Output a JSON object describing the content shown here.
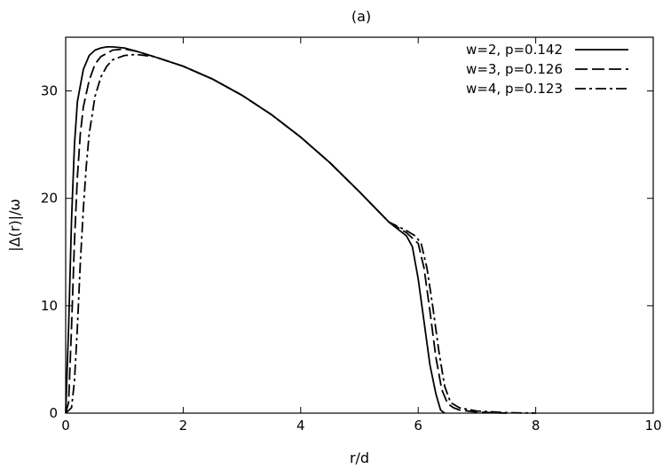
{
  "chart_data": {
    "type": "line",
    "title": "(a)",
    "xlabel": "r/d",
    "ylabel": "|Δ(r)|/ω",
    "xlim": [
      0,
      10
    ],
    "ylim": [
      0,
      35
    ],
    "xticks": [
      0,
      2,
      4,
      6,
      8,
      10
    ],
    "yticks": [
      0,
      10,
      20,
      30
    ],
    "grid": false,
    "legend_position": "top-right",
    "series": [
      {
        "name": "w=2, p=0.142",
        "style": "solid",
        "x": [
          0,
          0.05,
          0.1,
          0.15,
          0.2,
          0.3,
          0.4,
          0.5,
          0.6,
          0.7,
          0.8,
          1.0,
          1.2,
          1.5,
          2.0,
          2.5,
          3.0,
          3.5,
          4.0,
          4.5,
          5.0,
          5.5,
          5.8,
          5.9,
          6.0,
          6.1,
          6.2,
          6.3,
          6.38,
          6.45
        ],
        "y": [
          0,
          8,
          18,
          25,
          29,
          32,
          33.3,
          33.8,
          34.0,
          34.1,
          34.1,
          34.0,
          33.7,
          33.2,
          32.3,
          31.1,
          29.6,
          27.8,
          25.7,
          23.3,
          20.6,
          17.8,
          16.5,
          15.5,
          12.5,
          8.5,
          4.5,
          1.8,
          0.3,
          0
        ]
      },
      {
        "name": "w=3, p=0.126",
        "style": "dashed",
        "x": [
          0,
          0.05,
          0.1,
          0.15,
          0.2,
          0.25,
          0.3,
          0.4,
          0.5,
          0.6,
          0.8,
          1.0,
          1.2,
          1.5,
          2.0,
          2.5,
          3.0,
          3.5,
          4.0,
          4.5,
          5.0,
          5.5,
          5.8,
          5.9,
          6.0,
          6.1,
          6.2,
          6.3,
          6.4,
          6.5,
          6.6,
          6.7,
          7.0,
          7.5
        ],
        "y": [
          0,
          1,
          8,
          16,
          22,
          26,
          28.5,
          31,
          32.5,
          33.2,
          33.8,
          33.9,
          33.7,
          33.2,
          32.3,
          31.1,
          29.6,
          27.8,
          25.7,
          23.3,
          20.6,
          17.8,
          16.8,
          16.3,
          15.8,
          13.5,
          9.5,
          5.2,
          2.2,
          0.9,
          0.5,
          0.3,
          0.1,
          0
        ]
      },
      {
        "name": "w=4, p=0.123",
        "style": "dashdot",
        "x": [
          0,
          0.1,
          0.15,
          0.2,
          0.25,
          0.3,
          0.35,
          0.4,
          0.5,
          0.6,
          0.7,
          0.8,
          1.0,
          1.2,
          1.5,
          2.0,
          2.5,
          3.0,
          3.5,
          4.0,
          4.5,
          5.0,
          5.5,
          5.8,
          5.95,
          6.05,
          6.15,
          6.25,
          6.35,
          6.45,
          6.55,
          6.7,
          7.0,
          7.5,
          8.0
        ],
        "y": [
          0,
          0.5,
          3,
          8,
          14,
          19,
          23,
          26,
          29.5,
          31.3,
          32.3,
          32.9,
          33.3,
          33.4,
          33.2,
          32.3,
          31.1,
          29.6,
          27.8,
          25.7,
          23.3,
          20.6,
          17.8,
          17,
          16.5,
          15.8,
          13.5,
          9.8,
          5.8,
          2.5,
          1,
          0.5,
          0.2,
          0.05,
          0
        ]
      }
    ]
  }
}
